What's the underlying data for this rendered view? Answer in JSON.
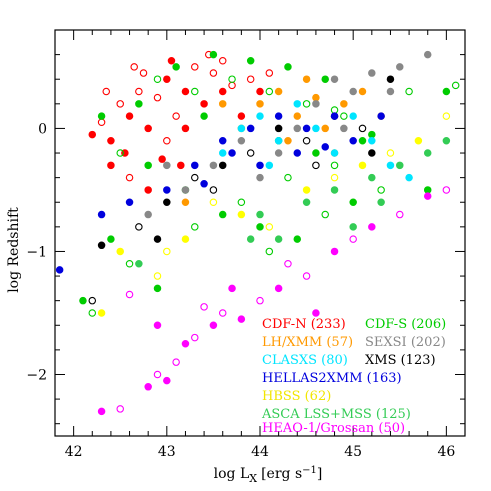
{
  "chart_data": {
    "type": "scatter",
    "title": "",
    "xlabel": "log L",
    "xlabel_sub": "X",
    "xlabel_unit": "[erg s",
    "xlabel_sup": "−1",
    "xlabel_close": "]",
    "ylabel": "log Redshift",
    "xlim": [
      41.8,
      46.2
    ],
    "ylim": [
      -2.5,
      0.8
    ],
    "xticks": [
      42,
      43,
      44,
      45,
      46
    ],
    "yticks": [
      0,
      -1,
      -2
    ],
    "grid": false,
    "legend_position": "bottom-right",
    "series": [
      {
        "name": "CDF-N (233)",
        "color": "#ff0000",
        "marker": "circle-mixed",
        "points": [
          [
            42.2,
            -0.05
          ],
          [
            42.3,
            0.05
          ],
          [
            42.4,
            -0.1
          ],
          [
            42.5,
            0.2
          ],
          [
            42.6,
            0.1
          ],
          [
            42.7,
            0.3
          ],
          [
            42.8,
            0.0
          ],
          [
            42.9,
            0.25
          ],
          [
            43.0,
            0.4
          ],
          [
            43.1,
            0.1
          ],
          [
            43.2,
            0.3
          ],
          [
            43.3,
            0.5
          ],
          [
            43.4,
            0.2
          ],
          [
            43.5,
            0.45
          ],
          [
            43.6,
            0.3
          ],
          [
            43.7,
            0.35
          ],
          [
            43.8,
            0.1
          ],
          [
            43.9,
            0.4
          ],
          [
            44.0,
            0.3
          ],
          [
            44.1,
            0.45
          ],
          [
            42.4,
            -0.3
          ],
          [
            42.6,
            -0.4
          ],
          [
            42.8,
            -0.5
          ],
          [
            43.0,
            -0.1
          ],
          [
            43.2,
            0.0
          ],
          [
            42.35,
            0.3
          ],
          [
            42.55,
            -0.2
          ],
          [
            42.75,
            0.45
          ],
          [
            43.05,
            0.55
          ],
          [
            43.45,
            0.6
          ],
          [
            43.15,
            -0.3
          ],
          [
            42.65,
            0.5
          ],
          [
            42.95,
            -0.25
          ],
          [
            43.6,
            0.55
          ]
        ]
      },
      {
        "name": "CDF-S (206)",
        "color": "#00cc00",
        "marker": "circle-mixed",
        "points": [
          [
            42.3,
            0.1
          ],
          [
            42.5,
            -0.2
          ],
          [
            42.7,
            0.2
          ],
          [
            42.9,
            0.4
          ],
          [
            43.1,
            0.5
          ],
          [
            43.3,
            0.3
          ],
          [
            43.5,
            0.6
          ],
          [
            43.7,
            0.4
          ],
          [
            43.9,
            0.55
          ],
          [
            44.1,
            0.3
          ],
          [
            44.3,
            0.5
          ],
          [
            44.5,
            0.2
          ],
          [
            44.7,
            0.4
          ],
          [
            44.9,
            0.1
          ],
          [
            45.1,
            -0.1
          ],
          [
            43.8,
            -0.6
          ],
          [
            44.0,
            -0.8
          ],
          [
            44.3,
            -0.4
          ],
          [
            44.6,
            -0.2
          ],
          [
            44.8,
            -0.3
          ],
          [
            45.2,
            -0.05
          ],
          [
            45.6,
            0.3
          ],
          [
            46.0,
            0.3
          ],
          [
            46.1,
            0.35
          ],
          [
            42.1,
            -1.4
          ],
          [
            42.2,
            -1.5
          ],
          [
            42.4,
            -0.9
          ],
          [
            42.6,
            -1.1
          ],
          [
            42.9,
            -1.3
          ],
          [
            43.3,
            -0.8
          ],
          [
            43.6,
            -0.7
          ],
          [
            44.1,
            -1.0
          ],
          [
            44.4,
            -0.9
          ],
          [
            44.7,
            -0.7
          ],
          [
            45.0,
            -0.6
          ],
          [
            45.3,
            -0.5
          ],
          [
            45.8,
            -0.5
          ],
          [
            43.2,
            -0.5
          ],
          [
            42.8,
            -0.3
          ],
          [
            44.2,
            -0.1
          ],
          [
            43.4,
            0.1
          ],
          [
            44.8,
            0.15
          ]
        ]
      },
      {
        "name": "LH/XMM (57)",
        "color": "#ff9900",
        "marker": "circle-filled",
        "points": [
          [
            44.0,
            0.2
          ],
          [
            44.2,
            0.3
          ],
          [
            44.4,
            0.1
          ],
          [
            44.5,
            0.4
          ],
          [
            44.7,
            0.0
          ],
          [
            44.9,
            0.2
          ],
          [
            45.1,
            0.3
          ],
          [
            43.8,
            0.0
          ],
          [
            44.3,
            -0.1
          ],
          [
            44.6,
            0.25
          ],
          [
            43.6,
            0.2
          ],
          [
            43.2,
            -0.6
          ],
          [
            44.8,
            -0.2
          ],
          [
            45.3,
            0.1
          ]
        ]
      },
      {
        "name": "SEXSI (202)",
        "color": "#888888",
        "marker": "circle-filled",
        "points": [
          [
            43.5,
            -0.3
          ],
          [
            43.8,
            -0.1
          ],
          [
            44.0,
            -0.4
          ],
          [
            44.2,
            -0.2
          ],
          [
            44.4,
            0.0
          ],
          [
            44.6,
            0.2
          ],
          [
            44.8,
            0.4
          ],
          [
            45.0,
            0.3
          ],
          [
            45.2,
            0.45
          ],
          [
            45.5,
            0.5
          ],
          [
            45.8,
            0.6
          ],
          [
            43.2,
            -0.5
          ],
          [
            43.0,
            -0.3
          ],
          [
            42.8,
            -0.7
          ],
          [
            45.4,
            0.3
          ],
          [
            44.9,
            0.0
          ]
        ]
      },
      {
        "name": "CLASXS (80)",
        "color": "#00e5ff",
        "marker": "circle-filled",
        "points": [
          [
            43.8,
            0.0
          ],
          [
            44.0,
            0.1
          ],
          [
            44.2,
            -0.1
          ],
          [
            44.4,
            0.2
          ],
          [
            44.6,
            0.0
          ],
          [
            44.8,
            -0.2
          ],
          [
            45.0,
            0.1
          ],
          [
            45.2,
            -0.1
          ],
          [
            45.4,
            -0.3
          ],
          [
            45.6,
            -0.4
          ],
          [
            43.6,
            -0.2
          ],
          [
            44.1,
            -0.3
          ]
        ]
      },
      {
        "name": "XMS (123)",
        "color": "#000000",
        "marker": "circle-mixed",
        "points": [
          [
            42.3,
            -0.95
          ],
          [
            42.7,
            -0.8
          ],
          [
            43.0,
            -0.6
          ],
          [
            43.3,
            -0.4
          ],
          [
            43.6,
            -0.3
          ],
          [
            43.9,
            -0.2
          ],
          [
            44.2,
            0.0
          ],
          [
            44.5,
            -0.1
          ],
          [
            44.8,
            0.1
          ],
          [
            45.1,
            0.0
          ],
          [
            45.4,
            0.4
          ],
          [
            43.5,
            -0.5
          ],
          [
            42.9,
            -0.9
          ],
          [
            44.6,
            -0.3
          ],
          [
            45.2,
            -0.2
          ],
          [
            42.2,
            -1.4
          ]
        ]
      },
      {
        "name": "HELLAS2XMM (163)",
        "color": "#0000dd",
        "marker": "circle-filled",
        "points": [
          [
            42.3,
            -0.7
          ],
          [
            42.6,
            -0.6
          ],
          [
            43.0,
            -0.5
          ],
          [
            43.3,
            -0.3
          ],
          [
            43.6,
            -0.1
          ],
          [
            43.9,
            0.0
          ],
          [
            44.2,
            0.1
          ],
          [
            44.5,
            0.0
          ],
          [
            44.8,
            0.1
          ],
          [
            45.0,
            -0.1
          ],
          [
            45.3,
            0.1
          ],
          [
            43.4,
            -0.45
          ],
          [
            44.0,
            -0.3
          ],
          [
            44.4,
            -0.2
          ],
          [
            44.7,
            -0.15
          ],
          [
            43.7,
            -0.2
          ],
          [
            41.85,
            -1.15
          ]
        ]
      },
      {
        "name": "HBSS (62)",
        "color": "#ffff00",
        "marker": "circle-mixed",
        "points": [
          [
            42.5,
            -1.0
          ],
          [
            42.9,
            -1.2
          ],
          [
            43.2,
            -0.9
          ],
          [
            43.5,
            -0.6
          ],
          [
            43.8,
            -0.7
          ],
          [
            44.1,
            -0.8
          ],
          [
            44.5,
            -0.5
          ],
          [
            44.8,
            -0.4
          ],
          [
            45.1,
            -0.3
          ],
          [
            45.4,
            -0.2
          ],
          [
            45.7,
            -0.1
          ],
          [
            46.0,
            0.1
          ],
          [
            42.3,
            -1.5
          ],
          [
            43.0,
            -1.0
          ]
        ]
      },
      {
        "name": "ASCA LSS+MSS (125)",
        "color": "#33cc55",
        "marker": "circle-filled",
        "points": [
          [
            44.5,
            -0.6
          ],
          [
            44.8,
            -0.5
          ],
          [
            45.0,
            -0.8
          ],
          [
            45.2,
            -0.4
          ],
          [
            45.5,
            -0.3
          ],
          [
            45.8,
            -0.2
          ],
          [
            46.0,
            -0.1
          ],
          [
            44.2,
            -0.9
          ],
          [
            44.0,
            -0.7
          ],
          [
            45.3,
            -0.6
          ],
          [
            42.7,
            -1.1
          ],
          [
            43.9,
            -0.9
          ]
        ]
      },
      {
        "name": "HEAO-1/Grossan (50)",
        "color": "#ff00ff",
        "marker": "circle-mixed",
        "points": [
          [
            42.3,
            -2.3
          ],
          [
            42.5,
            -2.28
          ],
          [
            42.8,
            -2.1
          ],
          [
            42.9,
            -2.0
          ],
          [
            43.0,
            -2.05
          ],
          [
            43.1,
            -1.9
          ],
          [
            43.2,
            -1.75
          ],
          [
            43.3,
            -1.7
          ],
          [
            43.5,
            -1.6
          ],
          [
            43.6,
            -1.5
          ],
          [
            43.8,
            -1.55
          ],
          [
            44.0,
            -1.4
          ],
          [
            44.2,
            -1.3
          ],
          [
            44.5,
            -1.2
          ],
          [
            44.8,
            -1.0
          ],
          [
            45.0,
            -0.9
          ],
          [
            45.2,
            -0.8
          ],
          [
            45.5,
            -0.7
          ],
          [
            45.8,
            -0.55
          ],
          [
            46.0,
            -0.5
          ],
          [
            42.9,
            -1.6
          ],
          [
            43.4,
            -1.45
          ],
          [
            43.7,
            -1.3
          ],
          [
            44.3,
            -1.1
          ],
          [
            44.6,
            -1.5
          ],
          [
            42.6,
            -1.35
          ]
        ]
      }
    ]
  }
}
